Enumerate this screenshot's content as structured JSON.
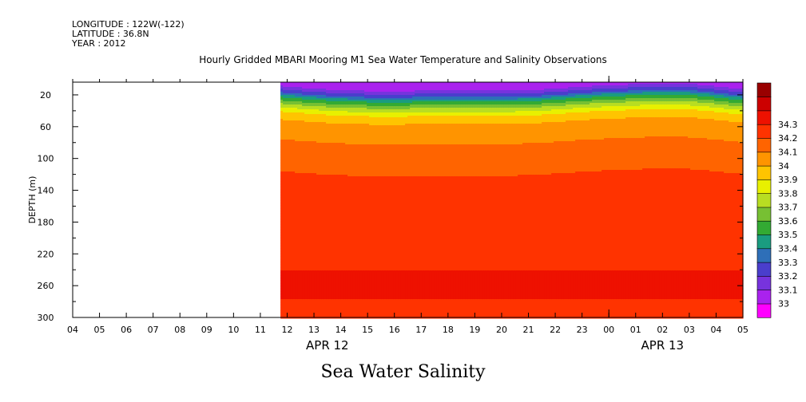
{
  "header": {
    "longitude": "LONGITUDE : 122W(-122)",
    "latitude": "LATITUDE : 36.8N",
    "year": "YEAR : 2012"
  },
  "chart_data": {
    "type": "heatmap",
    "title": "Hourly Gridded MBARI Mooring M1 Sea Water Temperature and Salinity Observations",
    "xlabel": "Sea Water Salinity",
    "ylabel": "DEPTH (m)",
    "x_hour_labels": [
      "04",
      "05",
      "06",
      "07",
      "08",
      "09",
      "10",
      "11",
      "12",
      "13",
      "14",
      "15",
      "16",
      "17",
      "18",
      "19",
      "20",
      "21",
      "22",
      "23",
      "00",
      "01",
      "02",
      "03",
      "04",
      "05"
    ],
    "x_date_labels": [
      {
        "label": "APR 12",
        "at_hour_index": 9.5
      },
      {
        "label": "APR 13",
        "at_hour_index": 22.0
      }
    ],
    "data_start_hour_index": 7.75,
    "y_ticks": [
      20,
      60,
      100,
      140,
      180,
      220,
      260,
      300
    ],
    "ylim": [
      300,
      4
    ],
    "colorbar": {
      "levels": [
        33,
        33.1,
        33.2,
        33.3,
        33.4,
        33.5,
        33.6,
        33.7,
        33.8,
        33.9,
        34,
        34.1,
        34.2,
        34.3
      ],
      "colors": [
        "#ff00ff",
        "#aa22ee",
        "#7733dd",
        "#4a3ecc",
        "#2e6fb8",
        "#1a9c80",
        "#33aa33",
        "#77c033",
        "#b8dd22",
        "#e8f000",
        "#ffc400",
        "#ff9400",
        "#ff6400",
        "#ff3300",
        "#ee1100",
        "#cc0000",
        "#990000"
      ]
    },
    "profile_x_hours": [
      7.75,
      9,
      10,
      11,
      12,
      13,
      14,
      15,
      16,
      17,
      18,
      19,
      20,
      21,
      22,
      23,
      24,
      25
    ],
    "surface_profile": [
      [
        4,
        33.0
      ],
      [
        8,
        33.1
      ],
      [
        12,
        33.2
      ],
      [
        16,
        33.3
      ],
      [
        20,
        33.45
      ],
      [
        26,
        33.6
      ],
      [
        32,
        33.75
      ],
      [
        40,
        33.9
      ],
      [
        50,
        34.0
      ],
      [
        60,
        34.05
      ],
      [
        75,
        34.1
      ],
      [
        95,
        34.15
      ],
      [
        115,
        34.2
      ],
      [
        135,
        34.25
      ]
    ],
    "deep_bands": [
      {
        "from": 135,
        "to": 225,
        "value": 34.25
      },
      {
        "from": 225,
        "to": 240,
        "value": 34.28
      },
      {
        "from": 240,
        "to": 275,
        "value": 34.32
      },
      {
        "from": 275,
        "to": 300,
        "value": 34.25
      }
    ]
  }
}
